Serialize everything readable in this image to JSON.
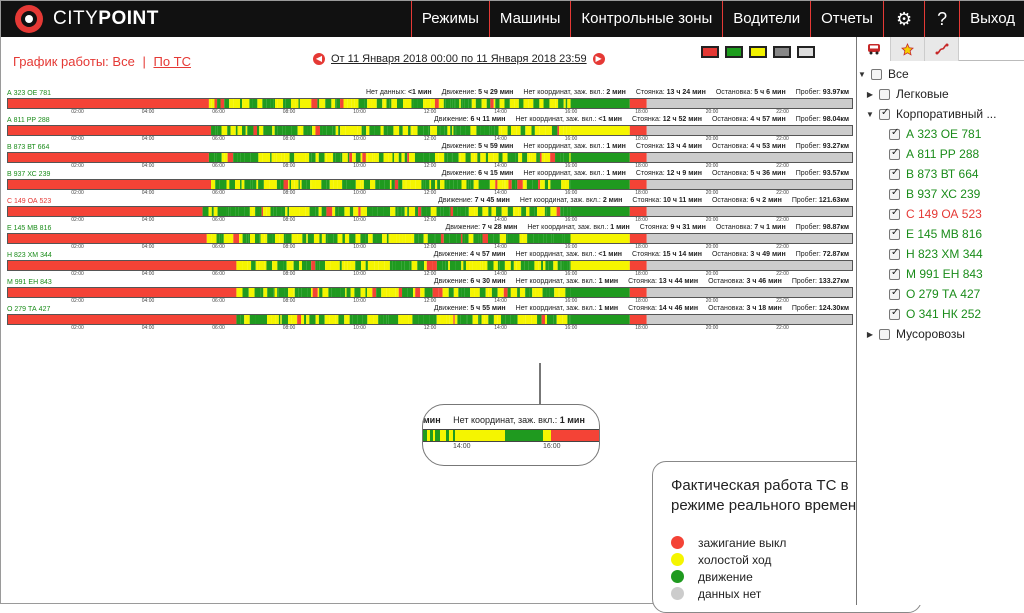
{
  "brand": {
    "light": "CITY",
    "bold": "POINT"
  },
  "nav": [
    "Режимы",
    "Машины",
    "Контрольные зоны",
    "Водители",
    "Отчеты",
    "⚙",
    "?",
    "Выход"
  ],
  "schedule": {
    "label": "График работы:",
    "all": "Все",
    "sep": "|",
    "by_vehicle": "По ТС"
  },
  "date_range": "От 11 Января 2018 00:00 по 11 Января 2018 23:59",
  "arrows": {
    "prev": "◀",
    "next": "▶"
  },
  "swatch_colors": [
    "#e53935",
    "#1e9e1e",
    "#f2f200",
    "#888888",
    "#dddddd"
  ],
  "colors": {
    "off": "#f44336",
    "idle": "#f5f500",
    "move": "#1f9a1f",
    "nodata": "#cccccc"
  },
  "tick_labels": [
    "02:00",
    "04:00",
    "06:00",
    "08:00",
    "10:00",
    "12:00",
    "14:00",
    "16:00",
    "18:00",
    "20:00",
    "22:00"
  ],
  "stat_labels": {
    "nodata": "Нет данных:",
    "move": "Движение:",
    "nocoord": "Нет координат, заж. вкл.:",
    "park": "Стоянка:",
    "stop": "Остановка:",
    "mileage": "Пробег:"
  },
  "vehicles": [
    {
      "name": "А 323 ОЕ 781",
      "red": false,
      "nodata": "<1 мин",
      "move": "5 ч 29 мин",
      "nocoord": "2 мин",
      "park": "13 ч 24 мин",
      "stop": "5 ч 6 мин",
      "mileage": "93.97км",
      "start": 0.2375,
      "seed": 3
    },
    {
      "name": "А 811 РР 288",
      "red": false,
      "move": "6 ч 11 мин",
      "nocoord": "<1 мин",
      "park": "12 ч 52 мин",
      "stop": "4 ч 57 мин",
      "mileage": "98.04км",
      "start": 0.24,
      "seed": 7
    },
    {
      "name": "В 873 ВТ 664",
      "red": false,
      "move": "5 ч 59 мин",
      "nocoord": "1 мин",
      "park": "13 ч 4 мин",
      "stop": "4 ч 53 мин",
      "mileage": "93.27км",
      "start": 0.2375,
      "seed": 11
    },
    {
      "name": "В 937 ХС 239",
      "red": false,
      "move": "6 ч 15 мин",
      "nocoord": "1 мин",
      "park": "12 ч 9 мин",
      "stop": "5 ч 36 мин",
      "mileage": "93.57км",
      "start": 0.24,
      "seed": 13
    },
    {
      "name": "С 149 ОА 523",
      "red": true,
      "move": "7 ч 45 мин",
      "nocoord": "2 мин",
      "park": "10 ч 11 мин",
      "stop": "6 ч 2 мин",
      "mileage": "121.63км",
      "start": 0.23,
      "seed": 17
    },
    {
      "name": "Е 145 МВ 816",
      "red": false,
      "move": "7 ч 28 мин",
      "nocoord": "1 мин",
      "park": "9 ч 31 мин",
      "stop": "7 ч 1 мин",
      "mileage": "98.87км",
      "start": 0.235,
      "seed": 19
    },
    {
      "name": "Н 823 ХМ 344",
      "red": false,
      "move": "4 ч 57 мин",
      "nocoord": "<1 мин",
      "park": "15 ч 14 мин",
      "stop": "3 ч 49 мин",
      "mileage": "72.87км",
      "start": 0.27,
      "seed": 23
    },
    {
      "name": "М 991 ЕН 843",
      "red": false,
      "move": "6 ч 30 мин",
      "nocoord": "1 мин",
      "park": "13 ч 44 мин",
      "stop": "3 ч 46 мин",
      "mileage": "133.27км",
      "start": 0.27,
      "seed": 29
    },
    {
      "name": "О 279 ТА 427",
      "red": false,
      "move": "5 ч 55 мин",
      "nocoord": "1 мин",
      "park": "14 ч 46 мин",
      "stop": "3 ч 18 мин",
      "mileage": "124.30км",
      "start": 0.27,
      "seed": 31
    }
  ],
  "zoom": {
    "prefix": "мин",
    "label": "Нет координат, заж. вкл.:",
    "value": "1 мин",
    "ticks": [
      "14:00",
      "16:00"
    ]
  },
  "legend": {
    "title": "Фактическая работа ТС в режиме реального времени:",
    "items": [
      {
        "color": "#f44336",
        "label": "зажигание выкл"
      },
      {
        "color": "#f5f500",
        "label": "холостой ход"
      },
      {
        "color": "#1f9a1f",
        "label": "движение"
      },
      {
        "color": "#cccccc",
        "label": "данных нет"
      }
    ]
  },
  "side_tabs": [
    "bus-icon",
    "star-icon",
    "route-icon"
  ],
  "tree": [
    {
      "caret": "▼",
      "label": "Все",
      "checked": false,
      "indent": 0,
      "color": ""
    },
    {
      "caret": "▶",
      "label": "Легковые",
      "checked": false,
      "indent": 1,
      "color": ""
    },
    {
      "caret": "▼",
      "label": "Корпоративный ...",
      "checked": true,
      "indent": 1,
      "color": ""
    },
    {
      "caret": "",
      "label": "А 323 ОЕ 781",
      "checked": true,
      "indent": 2,
      "color": "green"
    },
    {
      "caret": "",
      "label": "А 811 РР 288",
      "checked": true,
      "indent": 2,
      "color": "green"
    },
    {
      "caret": "",
      "label": "В 873 ВТ 664",
      "checked": true,
      "indent": 2,
      "color": "green"
    },
    {
      "caret": "",
      "label": "В 937 ХС 239",
      "checked": true,
      "indent": 2,
      "color": "green"
    },
    {
      "caret": "",
      "label": "С 149 ОА 523",
      "checked": true,
      "indent": 2,
      "color": "red"
    },
    {
      "caret": "",
      "label": "Е 145 МВ 816",
      "checked": true,
      "indent": 2,
      "color": "green"
    },
    {
      "caret": "",
      "label": "Н 823 ХМ 344",
      "checked": true,
      "indent": 2,
      "color": "green"
    },
    {
      "caret": "",
      "label": "М 991 ЕН 843",
      "checked": true,
      "indent": 2,
      "color": "green"
    },
    {
      "caret": "",
      "label": "О 279 ТА 427",
      "checked": true,
      "indent": 2,
      "color": "green"
    },
    {
      "caret": "",
      "label": "О 341 НК 252",
      "checked": true,
      "indent": 2,
      "color": "green"
    },
    {
      "caret": "▶",
      "label": "Мусоровозы",
      "checked": false,
      "indent": 1,
      "color": ""
    }
  ]
}
